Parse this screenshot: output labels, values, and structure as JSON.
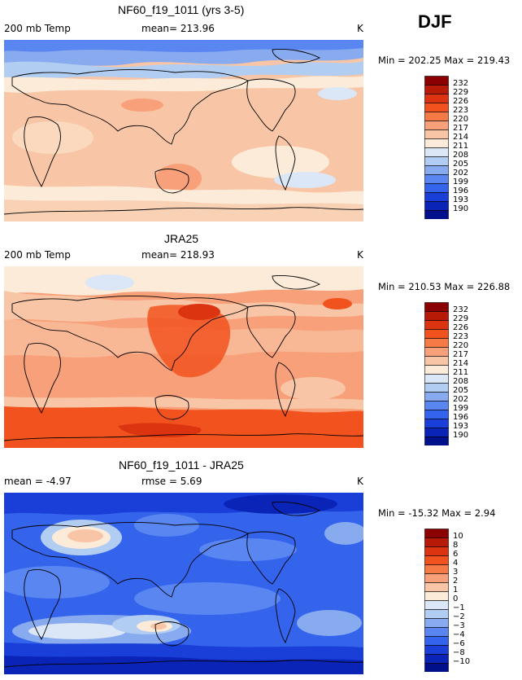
{
  "season": "DJF",
  "palette_warm": [
    "#8b0000",
    "#b81a08",
    "#dc3410",
    "#f2531e",
    "#f57a45",
    "#f7a07a",
    "#f8c6a6",
    "#fcebd8",
    "#dbe7f7",
    "#b2cdf2",
    "#88aaef",
    "#5a86f2",
    "#3463ec",
    "#1a3fd9",
    "#0b24b8",
    "#00108a"
  ],
  "chart_data": [
    {
      "type": "heatmap",
      "title": "NF60_f19_1011 (yrs 3-5)",
      "left_label": "200 mb Temp",
      "mid_label": "mean=  213.96",
      "units": "K",
      "minmax": "Min = 202.25  Max =  219.43",
      "colorbar": {
        "levels": [
          "232",
          "229",
          "226",
          "223",
          "220",
          "217",
          "214",
          "211",
          "208",
          "205",
          "202",
          "199",
          "196",
          "193",
          "190"
        ],
        "colors": [
          "#8b0000",
          "#b81a08",
          "#dc3410",
          "#f2531e",
          "#f57a45",
          "#f7a07a",
          "#f8c6a6",
          "#fcebd8",
          "#dbe7f7",
          "#b2cdf2",
          "#88aaef",
          "#5a86f2",
          "#3463ec",
          "#1a3fd9",
          "#0b24b8",
          "#00108a"
        ]
      }
    },
    {
      "type": "heatmap",
      "title": "JRA25",
      "left_label": "200 mb Temp",
      "mid_label": "mean=  218.93",
      "units": "K",
      "minmax": "Min = 210.53  Max =  226.88",
      "colorbar": {
        "levels": [
          "232",
          "229",
          "226",
          "223",
          "220",
          "217",
          "214",
          "211",
          "208",
          "205",
          "202",
          "199",
          "196",
          "193",
          "190"
        ],
        "colors": [
          "#8b0000",
          "#b81a08",
          "#dc3410",
          "#f2531e",
          "#f57a45",
          "#f7a07a",
          "#f8c6a6",
          "#fcebd8",
          "#dbe7f7",
          "#b2cdf2",
          "#88aaef",
          "#5a86f2",
          "#3463ec",
          "#1a3fd9",
          "#0b24b8",
          "#00108a"
        ]
      }
    },
    {
      "type": "heatmap",
      "title": "NF60_f19_1011 - JRA25",
      "left_label": "mean =   -4.97",
      "mid_label": "rmse =    5.69",
      "units": "K",
      "minmax": "Min = -15.32  Max =    2.94",
      "colorbar": {
        "levels": [
          "10",
          "8",
          "6",
          "4",
          "3",
          "2",
          "1",
          "0",
          "−1",
          "−2",
          "−3",
          "−4",
          "−6",
          "−8",
          "−10"
        ],
        "colors": [
          "#8b0000",
          "#b81a08",
          "#dc3410",
          "#f2531e",
          "#f57a45",
          "#f7a07a",
          "#f8c6a6",
          "#fcebd8",
          "#dbe7f7",
          "#b2cdf2",
          "#88aaef",
          "#5a86f2",
          "#3463ec",
          "#1a3fd9",
          "#0b24b8",
          "#00108a"
        ]
      }
    }
  ]
}
